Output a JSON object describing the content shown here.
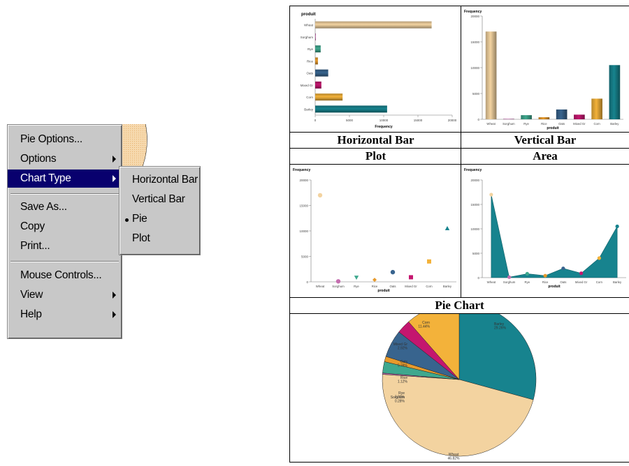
{
  "menu": {
    "items": [
      {
        "label": "Pie Options...",
        "has_submenu": false
      },
      {
        "label": "Options",
        "has_submenu": true
      },
      {
        "label": "Chart Type",
        "has_submenu": true,
        "selected": true
      },
      {
        "label": "Save As...",
        "has_submenu": false
      },
      {
        "label": "Copy",
        "has_submenu": false
      },
      {
        "label": "Print...",
        "has_submenu": false
      },
      {
        "label": "Mouse Controls...",
        "has_submenu": false
      },
      {
        "label": "View",
        "has_submenu": true
      },
      {
        "label": "Help",
        "has_submenu": true
      }
    ],
    "submenu": [
      {
        "label": "Horizontal Bar"
      },
      {
        "label": "Vertical Bar"
      },
      {
        "label": "Pie",
        "checked": true
      },
      {
        "label": "Plot"
      }
    ]
  },
  "captions": {
    "hbar": "Horizontal Bar",
    "vbar": "Vertical Bar",
    "plot": "Plot",
    "area": "Area",
    "pie": "Pie Chart"
  },
  "colors": {
    "menu_bg": "#c8c8c8",
    "menu_selected": "#08006e",
    "Wheat": "#f3d3a0",
    "Sorghum": "#c56fb0",
    "Rye": "#3fa88e",
    "Rice": "#e79a2c",
    "Oats": "#38648e",
    "Mixed Gr": "#c4166f",
    "Corn": "#f3b23a",
    "Barley": "#17838e"
  },
  "chart_data": [
    {
      "type": "bar",
      "orientation": "horizontal",
      "title": "produit",
      "xlabel": "Frequency",
      "categories": [
        "Wheat",
        "Sorghum",
        "Rye",
        "Rice",
        "Oats",
        "Mixed Gr",
        "Corn",
        "Barley"
      ],
      "values": [
        17000,
        100,
        800,
        400,
        1900,
        900,
        4000,
        10500
      ],
      "xticks": [
        "0",
        "5000",
        "10000",
        "15000",
        "20000"
      ],
      "xlim": [
        0,
        20000
      ]
    },
    {
      "type": "bar",
      "orientation": "vertical",
      "ylabel": "Frequency",
      "xlabel": "produit",
      "categories": [
        "Wheat",
        "Sorghum",
        "Rye",
        "Rice",
        "Oats",
        "Mixed Gr",
        "Corn",
        "Barley"
      ],
      "values": [
        17000,
        100,
        800,
        400,
        1900,
        900,
        4000,
        10500
      ],
      "yticks": [
        "0",
        "5000",
        "10000",
        "15000",
        "20000"
      ],
      "ylim": [
        0,
        20000
      ]
    },
    {
      "type": "scatter",
      "ylabel": "Frequency",
      "xlabel": "produit",
      "categories": [
        "Wheat",
        "Sorghum",
        "Rye",
        "Rice",
        "Oats",
        "Mixed Gr",
        "Corn",
        "Barley"
      ],
      "values": [
        17000,
        100,
        800,
        400,
        1900,
        900,
        4000,
        10500
      ],
      "yticks": [
        "0",
        "5000",
        "10000",
        "15000",
        "20000"
      ],
      "ylim": [
        0,
        20000
      ]
    },
    {
      "type": "area",
      "ylabel": "Frequency",
      "xlabel": "produit",
      "categories": [
        "Wheat",
        "Sorghum",
        "Rye",
        "Rice",
        "Oats",
        "Mixed Gr",
        "Corn",
        "Barley"
      ],
      "values": [
        17000,
        100,
        800,
        400,
        1900,
        900,
        4000,
        10500
      ],
      "yticks": [
        "0",
        "5000",
        "10000",
        "15000",
        "20000"
      ],
      "ylim": [
        0,
        20000
      ]
    },
    {
      "type": "pie",
      "slices": [
        {
          "label": "Barley",
          "pct": "29.26%",
          "value": 29.26
        },
        {
          "label": "Wheat",
          "pct": "46.82%",
          "value": 46.82
        },
        {
          "label": "Sorghum",
          "pct": "0.28%",
          "value": 0.28
        },
        {
          "label": "Rye",
          "pct": "2.39%",
          "value": 2.39
        },
        {
          "label": "Rice",
          "pct": "1.12%",
          "value": 1.12
        },
        {
          "label": "Oats",
          "pct": "5.78%",
          "value": 5.78
        },
        {
          "label": "Mixed Gr",
          "pct": "2.92%",
          "value": 2.92
        },
        {
          "label": "Corn",
          "pct": "11.44%",
          "value": 11.44
        }
      ]
    }
  ]
}
